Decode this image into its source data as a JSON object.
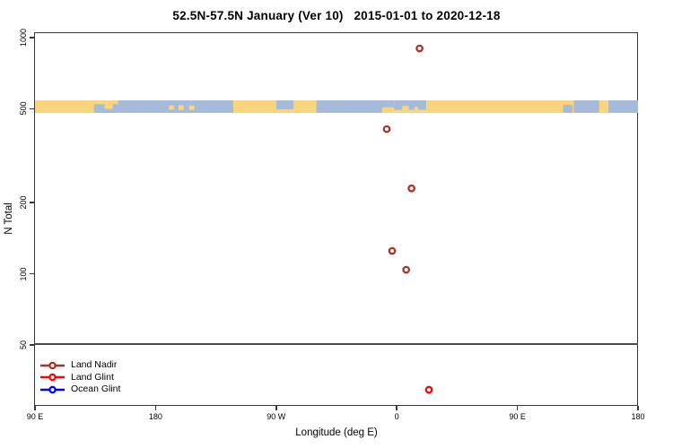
{
  "title": "52.5N-57.5N January (Ver 10)   2015-01-01 to 2020-12-18",
  "chart_data": {
    "type": "scatter",
    "title": "52.5N-57.5N January (Ver 10)   2015-01-01 to 2020-12-18",
    "xlabel": "Longitude (deg E)",
    "ylabel": "N Total",
    "x_axis": {
      "range_deg_east": [
        -270,
        180
      ],
      "ticks": [
        {
          "label": "90 E",
          "lon": -270
        },
        {
          "label": "180",
          "lon": -180
        },
        {
          "label": "90 W",
          "lon": -90
        },
        {
          "label": "0",
          "lon": 0
        },
        {
          "label": "90 E",
          "lon": 90
        },
        {
          "label": "180",
          "lon": 180
        }
      ]
    },
    "y_axis": {
      "scale": "log10",
      "range": [
        50,
        1045
      ],
      "break_value": 50,
      "ticks": [
        {
          "label": "1000",
          "value": 1000
        },
        {
          "label": "500",
          "value": 500
        },
        {
          "label": "200",
          "value": 200
        },
        {
          "label": "100",
          "value": 100
        },
        {
          "label": "50",
          "value": 50
        }
      ]
    },
    "grid": false,
    "legend_position": "bottom-left",
    "series": [
      {
        "name": "Land Nadir",
        "color": "#A93228",
        "points": [
          {
            "lon": 17,
            "n": 900
          },
          {
            "lon": -7.5,
            "n": 410
          },
          {
            "lon": 11,
            "n": 230
          },
          {
            "lon": -3.5,
            "n": 125
          },
          {
            "lon": 7,
            "n": 104
          }
        ]
      },
      {
        "name": "Land Glint",
        "color": "#FF0000",
        "points": [
          {
            "lon": 24,
            "n": 0
          }
        ]
      },
      {
        "name": "Ocean Glint",
        "color": "#0000FF",
        "points": []
      }
    ],
    "map_strip": {
      "description": "land/ocean world strip drawn across the plot near y=500",
      "at_value": 500,
      "land_color": "#FAD57E",
      "ocean_color": "#A6BAD9",
      "ocean_segments": [
        {
          "from": -226,
          "to": -208,
          "top": 0.3,
          "h": 0.7
        },
        {
          "from": -208,
          "to": -122,
          "top": 0.0,
          "h": 1.0
        },
        {
          "from": -90,
          "to": -77,
          "top": 0.0,
          "h": 0.72
        },
        {
          "from": -60,
          "to": -2,
          "top": 0.0,
          "h": 1.0
        },
        {
          "from": -2,
          "to": 22,
          "top": 0.0,
          "h": 0.75
        },
        {
          "from": 124,
          "to": 131,
          "top": 0.35,
          "h": 0.65
        },
        {
          "from": 132,
          "to": 180,
          "top": 0.0,
          "h": 1.0
        }
      ],
      "land_patches": [
        {
          "from": -218,
          "to": -212,
          "top": 0.25,
          "h": 0.45
        },
        {
          "from": -170,
          "to": -166,
          "top": 0.4,
          "h": 0.35
        },
        {
          "from": -163,
          "to": -159,
          "top": 0.38,
          "h": 0.4
        },
        {
          "from": -155,
          "to": -151,
          "top": 0.42,
          "h": 0.35
        },
        {
          "from": -11,
          "to": -2,
          "top": 0.55,
          "h": 0.45
        },
        {
          "from": 4,
          "to": 9,
          "top": 0.45,
          "h": 0.55
        },
        {
          "from": 13,
          "to": 16,
          "top": 0.5,
          "h": 0.5
        },
        {
          "from": 151,
          "to": 158,
          "top": 0.0,
          "h": 1.0
        }
      ]
    }
  },
  "legend": {
    "items": [
      {
        "label": "Land Nadir",
        "color": "#A93228"
      },
      {
        "label": "Land Glint",
        "color": "#FF0000"
      },
      {
        "label": "Ocean Glint",
        "color": "#0000FF"
      }
    ]
  }
}
